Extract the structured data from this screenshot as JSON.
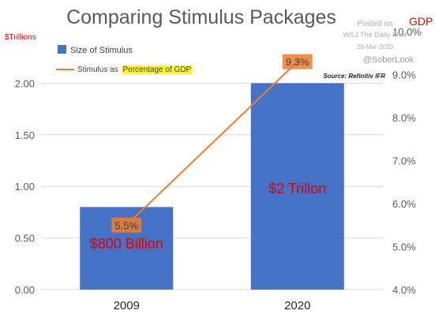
{
  "chart_data": {
    "type": "bar",
    "title": "Comparing Stimulus Packages",
    "categories": [
      "2009",
      "2020"
    ],
    "series": [
      {
        "name": "Size of Stimulus",
        "type": "bar",
        "axis": "left",
        "values": [
          0.8,
          2.0
        ],
        "data_labels": [
          "$800 Billion",
          "$2 Trillon"
        ],
        "color": "#4472c4"
      },
      {
        "name": "Stimulus as Percentage of GDP",
        "type": "line",
        "axis": "right",
        "values": [
          5.5,
          9.3
        ],
        "data_labels": [
          "5.5%",
          "9.3%"
        ],
        "color": "#ed7d31"
      }
    ],
    "legend_line_prefix": "Stimulus as",
    "legend_line_highlight": "Percentage of GDP",
    "yleft": {
      "label": "$Trillions",
      "ylim": [
        0,
        2.5
      ],
      "ticks": [
        0,
        0.5,
        1.0,
        1.5,
        2.0
      ],
      "tick_labels": [
        "0.00",
        "0.50",
        "1.00",
        "1.50",
        "2.00"
      ]
    },
    "yright": {
      "label": "GDP",
      "ylim": [
        4.0,
        10.0
      ],
      "ticks": [
        4,
        5,
        6,
        7,
        8,
        9,
        10
      ],
      "tick_labels": [
        "4.0%",
        "5.0%",
        "6.0%",
        "7.0%",
        "8.0%",
        "9.0%",
        "10.0%"
      ]
    },
    "legend_position": "top-left",
    "grid": true,
    "label_color": "#e00000",
    "highlight_color": "#ffff00",
    "annotation_box_color": "#ed7d31"
  },
  "notes": {
    "posted": "Posted on",
    "wsj": "WSJ The Daily Shot",
    "date": "26-Mar-2020",
    "handle": "@SoberLook",
    "source": "Source: Refinitiv IFR"
  }
}
